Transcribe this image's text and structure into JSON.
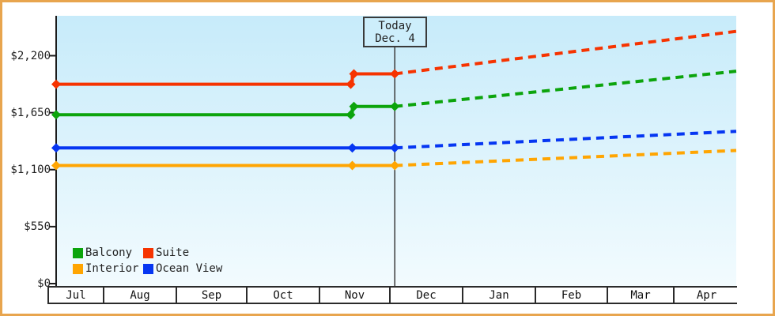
{
  "frame": {
    "border_color": "#e8a54e"
  },
  "chart_data": {
    "type": "line",
    "x_categories": [
      "Jul",
      "Aug",
      "Sep",
      "Oct",
      "Nov",
      "Dec",
      "Jan",
      "Feb",
      "Mar",
      "Apr"
    ],
    "y_ticks": [
      {
        "label": "$0",
        "value": 0
      },
      {
        "label": "$550",
        "value": 550
      },
      {
        "label": "$1,100",
        "value": 1100
      },
      {
        "label": "$1,650",
        "value": 1650
      },
      {
        "label": "$2,200",
        "value": 2200
      }
    ],
    "ylim": [
      0,
      2580
    ],
    "grid": false,
    "legend_position": "bottom-left",
    "plot_bg_top": "#c7ebfa",
    "plot_bg_bottom": "#f2fbfe",
    "axis_color": "#1c1c1c",
    "today": {
      "title": "Today",
      "date": "Dec. 4",
      "month": "Dec",
      "day": 4
    },
    "series": [
      {
        "name": "Balcony",
        "color": "#0ca40c",
        "solid_points": [
          {
            "month": "Jul",
            "day": 1,
            "value": 1630
          },
          {
            "month": "Nov",
            "day": 16,
            "value": 1630
          },
          {
            "month": "Nov",
            "day": 16,
            "value": 1710
          },
          {
            "month": "Dec",
            "day": 4,
            "value": 1710
          }
        ],
        "dashed_points": [
          {
            "month": "Dec",
            "day": 4,
            "value": 1710
          },
          {
            "month": "Apr",
            "day": 31,
            "value": 2050
          }
        ]
      },
      {
        "name": "Suite",
        "color": "#f63300",
        "solid_points": [
          {
            "month": "Jul",
            "day": 1,
            "value": 1925
          },
          {
            "month": "Nov",
            "day": 16,
            "value": 1925
          },
          {
            "month": "Nov",
            "day": 16,
            "value": 2025
          },
          {
            "month": "Dec",
            "day": 4,
            "value": 2025
          }
        ],
        "dashed_points": [
          {
            "month": "Dec",
            "day": 4,
            "value": 2025
          },
          {
            "month": "Apr",
            "day": 31,
            "value": 2435
          }
        ]
      },
      {
        "name": "Interior",
        "color": "#ffa502",
        "solid_points": [
          {
            "month": "Jul",
            "day": 1,
            "value": 1140
          },
          {
            "month": "Nov",
            "day": 16,
            "value": 1140
          },
          {
            "month": "Dec",
            "day": 4,
            "value": 1140
          }
        ],
        "dashed_points": [
          {
            "month": "Dec",
            "day": 4,
            "value": 1140
          },
          {
            "month": "Apr",
            "day": 31,
            "value": 1285
          }
        ]
      },
      {
        "name": "Ocean View",
        "color": "#0636f2",
        "solid_points": [
          {
            "month": "Jul",
            "day": 1,
            "value": 1310
          },
          {
            "month": "Nov",
            "day": 16,
            "value": 1310
          },
          {
            "month": "Dec",
            "day": 4,
            "value": 1310
          }
        ],
        "dashed_points": [
          {
            "month": "Dec",
            "day": 4,
            "value": 1310
          },
          {
            "month": "Apr",
            "day": 31,
            "value": 1470
          }
        ]
      }
    ]
  }
}
